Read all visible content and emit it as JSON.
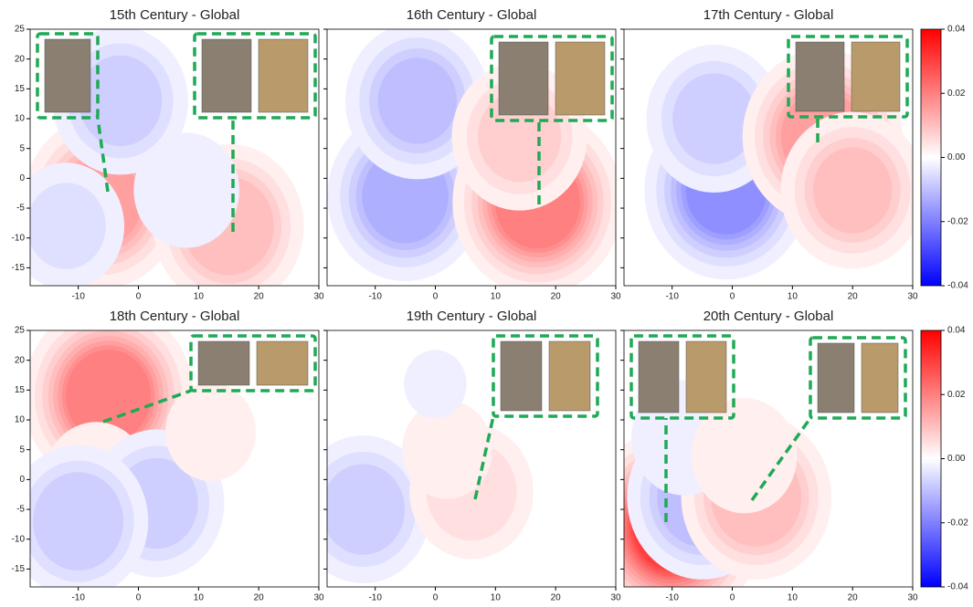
{
  "chart_data": [
    {
      "type": "contour",
      "title": "15th Century - Global",
      "xlim": [
        -18,
        30
      ],
      "ylim": [
        -18,
        25
      ],
      "xticks": [
        -10,
        0,
        10,
        20,
        30
      ],
      "yticks": [
        -15,
        -10,
        -5,
        0,
        5,
        10,
        15,
        20,
        25
      ],
      "peaks": [
        {
          "x": -6,
          "y": -4,
          "value": 0.015
        },
        {
          "x": 15,
          "y": -8,
          "value": 0.012
        },
        {
          "x": -3,
          "y": 13,
          "value": -0.008
        },
        {
          "x": -12,
          "y": -8,
          "value": -0.005
        },
        {
          "x": 8,
          "y": -2,
          "value": -0.004
        }
      ]
    },
    {
      "type": "contour",
      "title": "16th Century - Global",
      "xlim": [
        -18,
        30
      ],
      "ylim": [
        -18,
        25
      ],
      "xticks": [
        -10,
        0,
        10,
        20,
        30
      ],
      "yticks": [
        -15,
        -10,
        -5,
        0,
        5,
        10,
        15,
        20,
        25
      ],
      "peaks": [
        {
          "x": -5,
          "y": -3,
          "value": -0.014
        },
        {
          "x": -3,
          "y": 13,
          "value": -0.01
        },
        {
          "x": 17,
          "y": -4,
          "value": 0.022
        },
        {
          "x": 14,
          "y": 7,
          "value": 0.008
        }
      ]
    },
    {
      "type": "contour",
      "title": "17th Century - Global",
      "xlim": [
        -18,
        30
      ],
      "ylim": [
        -18,
        25
      ],
      "xticks": [
        -10,
        0,
        10,
        20,
        30
      ],
      "yticks": [
        -15,
        -10,
        -5,
        0,
        5,
        10,
        15,
        20,
        25
      ],
      "peaks": [
        {
          "x": -1,
          "y": -2,
          "value": -0.018
        },
        {
          "x": -3,
          "y": 10,
          "value": -0.008
        },
        {
          "x": 15,
          "y": 7,
          "value": 0.016
        },
        {
          "x": 20,
          "y": -2,
          "value": 0.01
        }
      ]
    },
    {
      "type": "contour",
      "title": "18th Century - Global",
      "xlim": [
        -18,
        30
      ],
      "ylim": [
        -18,
        25
      ],
      "xticks": [
        -10,
        0,
        10,
        20,
        30
      ],
      "yticks": [
        -15,
        -10,
        -5,
        0,
        5,
        10,
        15,
        20,
        25
      ],
      "peaks": [
        {
          "x": -5,
          "y": 14,
          "value": 0.022
        },
        {
          "x": -7,
          "y": 0,
          "value": 0.004
        },
        {
          "x": 3,
          "y": -4,
          "value": -0.008
        },
        {
          "x": -10,
          "y": -7,
          "value": -0.009
        },
        {
          "x": 12,
          "y": 8,
          "value": 0.003
        }
      ]
    },
    {
      "type": "contour",
      "title": "19th Century - Global",
      "xlim": [
        -18,
        30
      ],
      "ylim": [
        -18,
        25
      ],
      "xticks": [
        -10,
        0,
        10,
        20,
        30
      ],
      "yticks": [
        -15,
        -10,
        -5,
        0,
        5,
        10,
        15,
        20,
        25
      ],
      "peaks": [
        {
          "x": -12,
          "y": -5,
          "value": -0.008
        },
        {
          "x": 6,
          "y": -2,
          "value": 0.006
        },
        {
          "x": 2,
          "y": 5,
          "value": 0.003
        },
        {
          "x": 0,
          "y": 16,
          "value": -0.002
        }
      ]
    },
    {
      "type": "contour",
      "title": "20th Century - Global",
      "xlim": [
        -18,
        30
      ],
      "ylim": [
        -18,
        25
      ],
      "xticks": [
        -10,
        0,
        10,
        20,
        30
      ],
      "yticks": [
        -15,
        -10,
        -5,
        0,
        5,
        10,
        15,
        20,
        25
      ],
      "peaks": [
        {
          "x": -10,
          "y": -8,
          "value": 0.03
        },
        {
          "x": -5,
          "y": -3,
          "value": -0.012
        },
        {
          "x": 4,
          "y": -3,
          "value": 0.012
        },
        {
          "x": -8,
          "y": 7,
          "value": -0.004
        },
        {
          "x": 2,
          "y": 4,
          "value": 0.004
        }
      ]
    }
  ],
  "colorbar": {
    "lim": [
      -0.04,
      0.04
    ],
    "ticks": [
      0.04,
      0.02,
      {
        "value": 0,
        "label": "0.00"
      },
      -0.02,
      -0.04
    ]
  }
}
